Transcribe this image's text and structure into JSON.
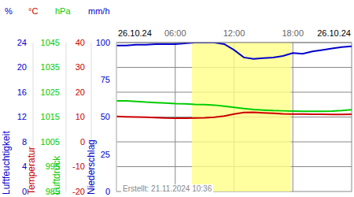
{
  "chart_data": {
    "type": "line",
    "dates": [
      "26.10.24",
      "26.10.24"
    ],
    "footer": "Erstellt: 21.11.2024 10:36",
    "x": [
      0,
      1,
      2,
      3,
      4,
      5,
      6,
      7,
      8,
      9,
      10,
      11,
      12,
      13,
      14,
      15,
      16,
      17,
      18,
      19,
      20,
      21,
      22,
      23,
      24
    ],
    "xlim": [
      0,
      24
    ],
    "xticks": [
      {
        "value": 6,
        "label": "06:00"
      },
      {
        "value": 12,
        "label": "12:00"
      },
      {
        "value": 18,
        "label": "18:00"
      }
    ],
    "daylight": [
      7.7,
      17.8
    ],
    "grid": true,
    "axes": [
      {
        "unit": "%",
        "label": "Luftfeuchtigkeit",
        "color": "#0000cc",
        "ylim": [
          0,
          100
        ],
        "yticks": [
          0,
          25,
          50,
          75,
          100
        ],
        "values": [
          98,
          98,
          98.5,
          98.5,
          99,
          99,
          99,
          99.5,
          100,
          100,
          100,
          99,
          95,
          90,
          89,
          89.5,
          90,
          91,
          93,
          92.5,
          94,
          95,
          96,
          97,
          97.5
        ]
      },
      {
        "unit": "°C",
        "label": "Temperatur",
        "color": "#cc0000",
        "ylim": [
          -20,
          40
        ],
        "yticks": [
          -20,
          -10,
          0,
          10,
          20,
          30,
          40
        ],
        "values": [
          10.2,
          10.1,
          10,
          9.9,
          9.8,
          9.6,
          9.5,
          9.5,
          9.6,
          9.7,
          9.9,
          10.4,
          11.2,
          11.8,
          11.9,
          11.7,
          11.5,
          11.3,
          11.2,
          11.2,
          11.1,
          11.1,
          11,
          11,
          11.1
        ]
      },
      {
        "unit": "hPa",
        "label": "Luftdruck",
        "color": "#00cc00",
        "ylim": [
          985,
          1045
        ],
        "yticks": [
          985,
          995,
          1005,
          1015,
          1025,
          1035,
          1045
        ],
        "values": [
          1021.5,
          1021.5,
          1021.3,
          1021,
          1020.8,
          1020.6,
          1020.4,
          1020.3,
          1020.1,
          1020,
          1019.8,
          1019.4,
          1018.9,
          1018.4,
          1018,
          1017.8,
          1017.6,
          1017.5,
          1017.4,
          1017.3,
          1017.3,
          1017.3,
          1017.4,
          1017.6,
          1017.9
        ]
      },
      {
        "unit": "mm/h",
        "label": "Niederschlag",
        "color": "#0000cc",
        "ylim": [
          0,
          24
        ],
        "yticks": [
          0,
          4,
          8,
          12,
          16,
          20,
          24
        ]
      }
    ]
  }
}
